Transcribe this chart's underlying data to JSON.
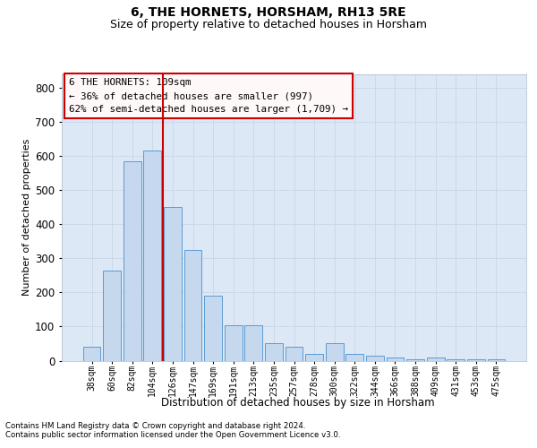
{
  "title": "6, THE HORNETS, HORSHAM, RH13 5RE",
  "subtitle": "Size of property relative to detached houses in Horsham",
  "xlabel": "Distribution of detached houses by size in Horsham",
  "ylabel": "Number of detached properties",
  "footnote1": "Contains HM Land Registry data © Crown copyright and database right 2024.",
  "footnote2": "Contains public sector information licensed under the Open Government Licence v3.0.",
  "annotation_title": "6 THE HORNETS: 109sqm",
  "annotation_line1": "← 36% of detached houses are smaller (997)",
  "annotation_line2": "62% of semi-detached houses are larger (1,709) →",
  "categories": [
    "38sqm",
    "60sqm",
    "82sqm",
    "104sqm",
    "126sqm",
    "147sqm",
    "169sqm",
    "191sqm",
    "213sqm",
    "235sqm",
    "257sqm",
    "278sqm",
    "300sqm",
    "322sqm",
    "344sqm",
    "366sqm",
    "388sqm",
    "409sqm",
    "431sqm",
    "453sqm",
    "475sqm"
  ],
  "values": [
    40,
    265,
    585,
    615,
    450,
    325,
    190,
    105,
    105,
    50,
    40,
    20,
    50,
    20,
    15,
    10,
    5,
    10,
    5,
    5,
    5
  ],
  "bar_color": "#c5d8ee",
  "bar_edge_color": "#5b9bd5",
  "vline_color": "#cc0000",
  "vline_x_idx": 3.5,
  "ylim_max": 840,
  "ytick_step": 100,
  "grid_color": "#ccd8e8",
  "bg_color": "#dce8f5",
  "title_fontsize": 10,
  "subtitle_fontsize": 9,
  "ann_facecolor": "#fff8f8",
  "ann_edgecolor": "#cc0000"
}
